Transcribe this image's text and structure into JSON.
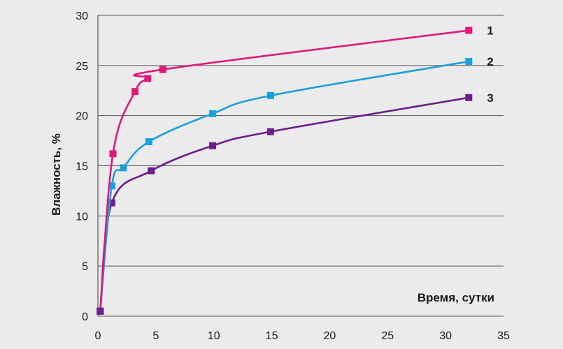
{
  "chart_data": {
    "type": "line",
    "title": "",
    "xlabel": "Время, сутки",
    "ylabel": "Влажность, %",
    "xlim": [
      0,
      35
    ],
    "ylim": [
      0,
      30
    ],
    "x_ticks": [
      0,
      5,
      10,
      15,
      20,
      25,
      30,
      35
    ],
    "y_ticks": [
      0,
      5,
      10,
      15,
      20,
      25,
      30
    ],
    "grid": "horizontal",
    "legend": "direct labels at right end of lines",
    "series": [
      {
        "name": "1",
        "color": "#e0197a",
        "points": [
          [
            0.2,
            0.5
          ],
          [
            1.3,
            16.2
          ],
          [
            3.2,
            22.4
          ],
          [
            4.3,
            23.7
          ],
          [
            5.6,
            24.6
          ],
          [
            32.0,
            28.5
          ]
        ]
      },
      {
        "name": "2",
        "color": "#1aa0dc",
        "points": [
          [
            0.2,
            0.5
          ],
          [
            1.2,
            13.0
          ],
          [
            2.2,
            14.8
          ],
          [
            4.4,
            17.4
          ],
          [
            9.9,
            20.2
          ],
          [
            14.9,
            22.0
          ],
          [
            32.0,
            25.4
          ]
        ]
      },
      {
        "name": "3",
        "color": "#6b1f8a",
        "points": [
          [
            0.2,
            0.5
          ],
          [
            1.2,
            11.3
          ],
          [
            4.6,
            14.5
          ],
          [
            9.9,
            17.0
          ],
          [
            14.9,
            18.4
          ],
          [
            32.0,
            21.8
          ]
        ]
      }
    ]
  }
}
